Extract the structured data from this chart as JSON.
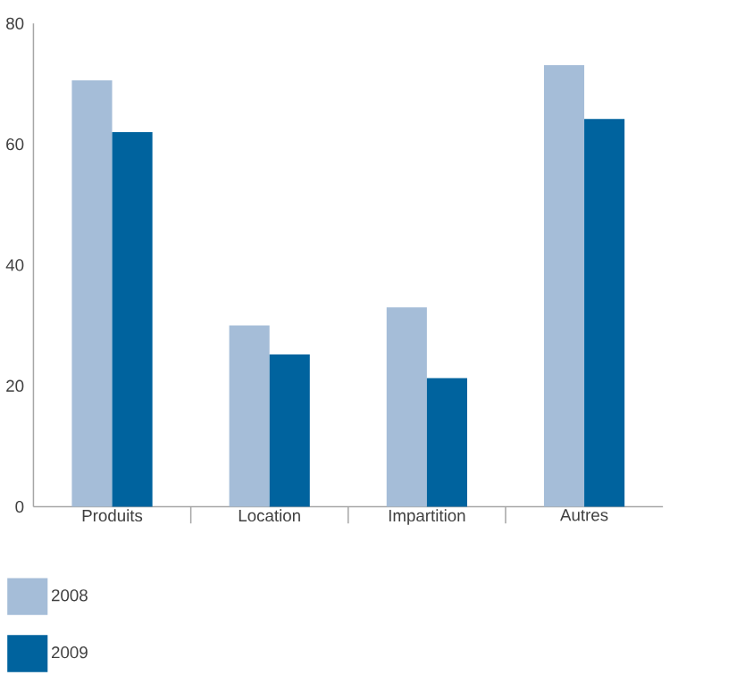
{
  "chart_data": {
    "type": "bar",
    "categories": [
      "Produits",
      "Location",
      "Impartition",
      "Autres"
    ],
    "series": [
      {
        "name": "2008",
        "color": "#a5bdd8",
        "values": [
          70.6,
          30.0,
          33.0,
          73.1
        ]
      },
      {
        "name": "2009",
        "color": "#00639e",
        "values": [
          62.0,
          25.2,
          21.3,
          64.2
        ]
      }
    ],
    "ylim": [
      0,
      80
    ],
    "yticks": [
      0,
      20,
      40,
      60,
      80
    ],
    "grid": false,
    "legend": "bottom left"
  }
}
